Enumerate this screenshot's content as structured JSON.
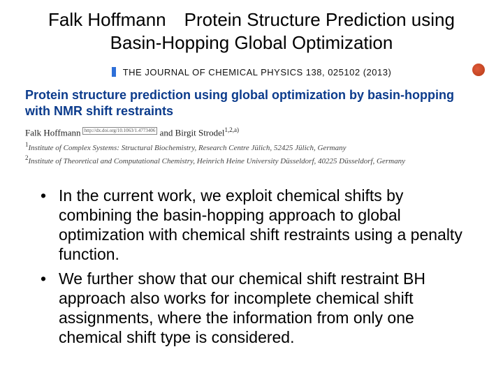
{
  "slide": {
    "title": "Falk Hoffmann Protein Structure Prediction using Basin-Hopping Global Optimization"
  },
  "journal": {
    "name": "THE JOURNAL OF CHEMICAL PHYSICS 138, 025102 (2013)",
    "accent_color": "#2e6fd8",
    "logo_color": "#c24420"
  },
  "paper": {
    "title": "Protein structure prediction using global optimization by basin-hopping with NMR shift restraints",
    "title_color": "#0b3b8c",
    "authors_line": "Falk Hoffmann  and Birgit Strodel",
    "author1": "Falk Hoffmann",
    "author_sep": " and ",
    "author2": "Birgit Strodel",
    "sup12a": "1,2,a)",
    "doi_hint": "http://dx.doi.org/10.1063/1.4773406",
    "affil1_sup": "1",
    "affil1": "Institute of Complex Systems: Structural Biochemistry, Research Centre Jülich, 52425 Jülich, Germany",
    "affil2_sup": "2",
    "affil2": "Institute of Theoretical and Computational Chemistry, Heinrich Heine University Düsseldorf, 40225 Düsseldorf, Germany"
  },
  "bullets": {
    "b1": "In the current work, we exploit chemical shifts by combining the basin-hopping approach to global optimization with chemical shift restraints using a penalty function.",
    "b2": "We further show that our chemical shift restraint BH approach also works for incomplete chemical shift assignments, where the information from only one chemical shift type is considered."
  },
  "colors": {
    "background": "#ffffff",
    "text": "#000000"
  }
}
